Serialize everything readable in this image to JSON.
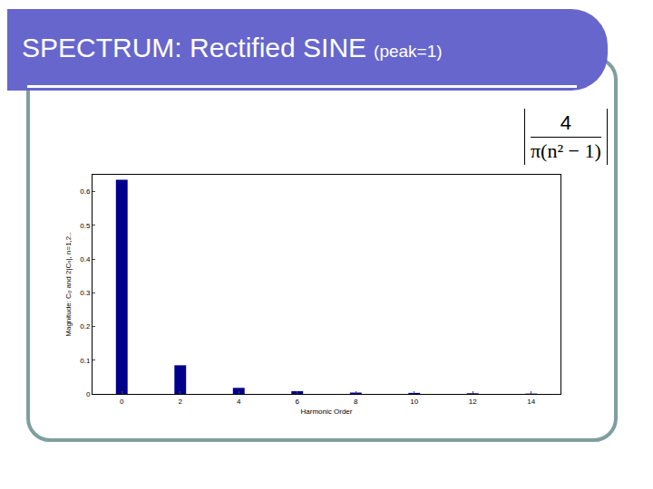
{
  "slide": {
    "title": "SPECTRUM: Rectified SINE",
    "subtitle": "(peak=1)",
    "formula": {
      "numerator": "4",
      "denominator": "π(n² − 1)"
    }
  },
  "chart_data": {
    "type": "bar",
    "x": [
      0,
      2,
      4,
      6,
      8,
      10,
      12,
      14
    ],
    "values": [
      0.635,
      0.085,
      0.018,
      0.008,
      0.004,
      0.003,
      0.002,
      0.001
    ],
    "color": "#00008b",
    "x_label": "Harmonic Order",
    "y_label": "Magnitude: C₀ and 2|Cₙ|, n=1,2..",
    "xlim": [
      -1,
      15
    ],
    "xticks": [
      0,
      2,
      4,
      6,
      8,
      10,
      12,
      14
    ],
    "ylim": [
      0,
      0.65
    ],
    "yticks": [
      0,
      0.1,
      0.2,
      0.3,
      0.4,
      0.5,
      0.6
    ],
    "grid": false
  }
}
